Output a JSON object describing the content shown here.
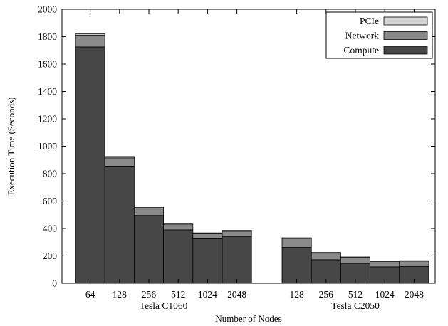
{
  "chart_data": {
    "type": "bar",
    "subtype": "stacked",
    "xlabel": "Number of Nodes",
    "ylabel": "Execution Time (Seconds)",
    "ylim": [
      0,
      2000
    ],
    "yticks": [
      0,
      200,
      400,
      600,
      800,
      1000,
      1200,
      1400,
      1600,
      1800,
      2000
    ],
    "grid": false,
    "legend_position": "top-right",
    "series": [
      {
        "name": "Compute",
        "color": "#474747"
      },
      {
        "name": "Network",
        "color": "#8a8a8a"
      },
      {
        "name": "PCIe",
        "color": "#d4d4d4"
      }
    ],
    "groups": [
      {
        "label": "Tesla C1060",
        "categories": [
          "64",
          "128",
          "256",
          "512",
          "1024",
          "2048"
        ],
        "values": {
          "Compute": [
            1725,
            855,
            495,
            390,
            325,
            342
          ],
          "Network": [
            85,
            60,
            50,
            42,
            37,
            38
          ],
          "PCIe": [
            10,
            10,
            8,
            6,
            6,
            6
          ]
        }
      },
      {
        "label": "Tesla C2050",
        "categories": [
          "128",
          "256",
          "512",
          "1024",
          "2048"
        ],
        "values": {
          "Compute": [
            262,
            172,
            145,
            120,
            122
          ],
          "Network": [
            65,
            48,
            42,
            40,
            40
          ],
          "PCIe": [
            5,
            5,
            5,
            3,
            3
          ]
        }
      }
    ]
  }
}
